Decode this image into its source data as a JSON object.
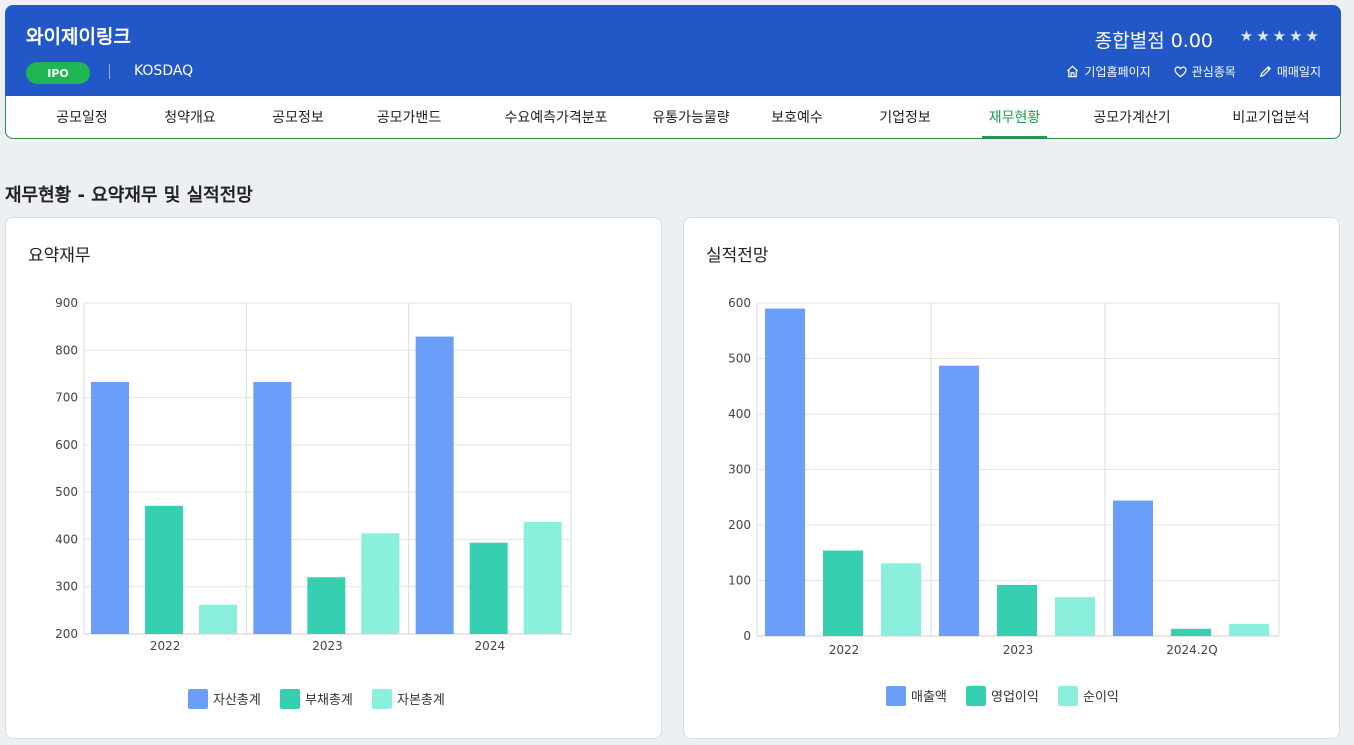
{
  "header": {
    "company": "와이제이링크",
    "badge": "IPO",
    "market": "KOSDAQ",
    "rating_label": "종합별점",
    "rating_value": "0.00",
    "stars": [
      "★",
      "★",
      "★",
      "★",
      "★"
    ],
    "links": [
      {
        "label": "기업홈페이지",
        "icon": "home-icon"
      },
      {
        "label": "관심종목",
        "icon": "heart-icon"
      },
      {
        "label": "매매일지",
        "icon": "pencil-icon"
      }
    ]
  },
  "tabs": [
    "공모일정",
    "청약개요",
    "공모정보",
    "공모가밴드",
    "수요예측가격분포",
    "유통가능물량",
    "보호예수",
    "기업정보",
    "재무현황",
    "공모가계산기",
    "비교기업분석"
  ],
  "active_tab": "재무현황",
  "section_title": "재무현황 - 요약재무 및 실적전망",
  "cards": [
    {
      "title": "요약재무"
    },
    {
      "title": "실적전망"
    }
  ],
  "colors": {
    "header": "#2157c7",
    "accent": "#1f9d4c",
    "series1": "#6b9ef8",
    "series2": "#36cfb0",
    "series3": "#8af0dd"
  },
  "chart_data": [
    {
      "type": "bar",
      "categories": [
        "2022",
        "2023",
        "2024"
      ],
      "series": [
        {
          "name": "자산총계",
          "values": [
            733,
            733,
            829
          ]
        },
        {
          "name": "부채총계",
          "values": [
            471,
            320,
            393
          ]
        },
        {
          "name": "자본총계",
          "values": [
            262,
            413,
            437
          ]
        }
      ],
      "ylim": [
        200,
        900
      ],
      "yticks": [
        200,
        300,
        400,
        500,
        600,
        700,
        800,
        900
      ],
      "grid": true,
      "legend": "bottom"
    },
    {
      "type": "bar",
      "categories": [
        "2022",
        "2023",
        "2024.2Q"
      ],
      "series": [
        {
          "name": "매출액",
          "values": [
            590,
            487,
            244
          ]
        },
        {
          "name": "영업이익",
          "values": [
            154,
            92,
            13
          ]
        },
        {
          "name": "순이익",
          "values": [
            131,
            70,
            22
          ]
        }
      ],
      "ylim": [
        0,
        600
      ],
      "yticks": [
        0,
        100,
        200,
        300,
        400,
        500,
        600
      ],
      "grid": true,
      "legend": "bottom"
    }
  ]
}
